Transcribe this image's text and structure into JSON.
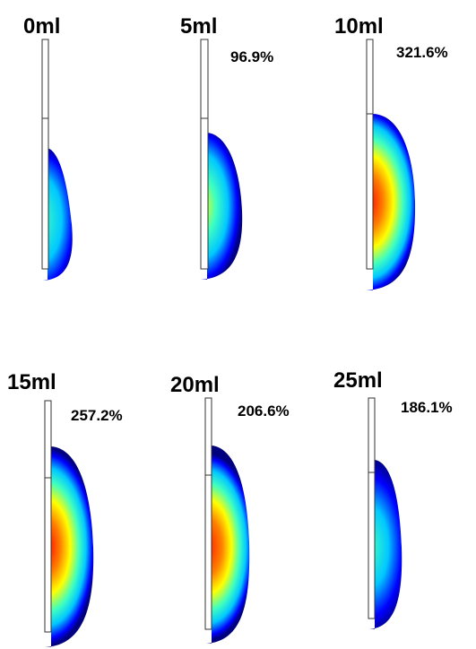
{
  "panels": [
    {
      "volume": "0ml",
      "percent": ""
    },
    {
      "volume": "5ml",
      "percent": "96.9%"
    },
    {
      "volume": "10ml",
      "percent": "321.6%"
    },
    {
      "volume": "15ml",
      "percent": "257.2%"
    },
    {
      "volume": "20ml",
      "percent": "206.6%"
    },
    {
      "volume": "25ml",
      "percent": "186.1%"
    }
  ],
  "colorscale": [
    "#00007f",
    "#0000ff",
    "#00c8ff",
    "#40ffbf",
    "#ffff00",
    "#ff8000",
    "#ff0000",
    "#c80000"
  ]
}
